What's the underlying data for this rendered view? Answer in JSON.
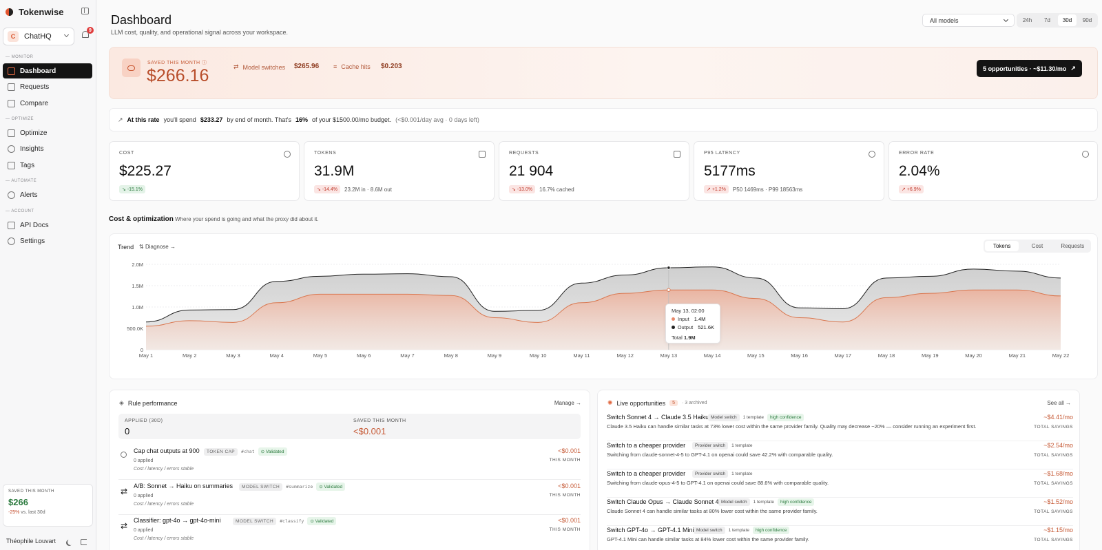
{
  "app": {
    "name": "Tokenwise"
  },
  "workspace": {
    "initial": "C",
    "name": "ChatHQ"
  },
  "notifications": {
    "count": "9"
  },
  "sidebar": {
    "sections": [
      {
        "label": "Monitor"
      },
      {
        "label": "Optimize"
      },
      {
        "label": "Automate"
      },
      {
        "label": "Account"
      }
    ],
    "items": [
      {
        "label": "Dashboard",
        "icon": "grid-icon"
      },
      {
        "label": "Requests",
        "icon": "list-icon"
      },
      {
        "label": "Compare",
        "icon": "compare-icon"
      },
      {
        "label": "Optimize",
        "icon": "sliders-icon"
      },
      {
        "label": "Insights",
        "icon": "lightbulb-icon"
      },
      {
        "label": "Tags",
        "icon": "tag-icon"
      },
      {
        "label": "Alerts",
        "icon": "bell-icon"
      },
      {
        "label": "API Docs",
        "icon": "code-icon"
      },
      {
        "label": "Settings",
        "icon": "gear-icon"
      }
    ],
    "saved": {
      "label": "SAVED THIS MONTH",
      "amount": "$266",
      "delta": "-25%",
      "delta_suffix": "vs. last 30d"
    },
    "user": "Théophile Louvart"
  },
  "header": {
    "title": "Dashboard",
    "subtitle": "LLM cost, quality, and operational signal across your workspace.",
    "model_select": "All models",
    "ranges": [
      "24h",
      "7d",
      "30d",
      "90d"
    ],
    "active_range": "30d"
  },
  "banner": {
    "label": "SAVED THIS MONTH",
    "amount": "$266.16",
    "stats": [
      {
        "label": "Model switches",
        "value": "$265.96"
      },
      {
        "label": "Cache hits",
        "value": "$0.203"
      }
    ],
    "cta": "5 opportunities · ~$11.30/mo"
  },
  "forecast": {
    "lead": "At this rate",
    "p1": "you'll spend",
    "amount": "$233.27",
    "p2": "by end of month. That's",
    "pct": "16%",
    "p3": "of your $1500.00/mo budget.",
    "muted": "(<$0.001/day avg · 0 days left)"
  },
  "kpis": [
    {
      "label": "COST",
      "value": "$225.27",
      "delta": "-15.1%",
      "delta_kind": "good",
      "note": ""
    },
    {
      "label": "TOKENS",
      "value": "31.9M",
      "delta": "-14.4%",
      "delta_kind": "bad",
      "note": "23.2M in · 8.6M out"
    },
    {
      "label": "REQUESTS",
      "value": "21 904",
      "delta": "-13.0%",
      "delta_kind": "bad",
      "note": "16.7% cached"
    },
    {
      "label": "P95 LATENCY",
      "value": "5177ms",
      "delta": "+1.2%",
      "delta_kind": "bad",
      "note": "P50 1469ms · P99 18563ms"
    },
    {
      "label": "ERROR RATE",
      "value": "2.04%",
      "delta": "+6.9%",
      "delta_kind": "bad",
      "note": ""
    }
  ],
  "cost_section": {
    "title": "Cost & optimization",
    "subtitle": "Where your spend is going and what the proxy did about it."
  },
  "trend": {
    "title": "Trend",
    "diagnose": "Diagnose →",
    "metrics": [
      "Tokens",
      "Cost",
      "Requests"
    ],
    "active_metric": "Tokens",
    "tooltip": {
      "date": "May 13, 02:00",
      "input_label": "Input",
      "input_value": "1.4M",
      "output_label": "Output",
      "output_value": "521.6K",
      "total_label": "Total",
      "total_value": "1.9M"
    }
  },
  "chart_data": {
    "type": "area",
    "title": "Trend",
    "x": [
      "May 1",
      "May 2",
      "May 3",
      "May 4",
      "May 5",
      "May 6",
      "May 7",
      "May 8",
      "May 9",
      "May 10",
      "May 11",
      "May 12",
      "May 13",
      "May 14",
      "May 15",
      "May 16",
      "May 17",
      "May 18",
      "May 19",
      "May 20",
      "May 21",
      "May 22"
    ],
    "yticks": [
      "0",
      "500.0K",
      "1.0M",
      "1.5M",
      "2.0M"
    ],
    "ylim": [
      0,
      2000000
    ],
    "stacked": true,
    "series": [
      {
        "name": "Input",
        "color": "#e8896a",
        "values": [
          550000,
          680000,
          640000,
          1100000,
          1300000,
          1300000,
          1300000,
          1270000,
          750000,
          640000,
          1100000,
          1320000,
          1400000,
          1400000,
          1200000,
          750000,
          650000,
          1220000,
          1320000,
          1400000,
          1400000,
          1260000
        ]
      },
      {
        "name": "Output",
        "color": "#333333",
        "values": [
          100000,
          250000,
          300000,
          500000,
          420000,
          470000,
          480000,
          440000,
          150000,
          280000,
          460000,
          430000,
          520000,
          540000,
          480000,
          230000,
          310000,
          460000,
          400000,
          490000,
          440000,
          420000
        ]
      }
    ],
    "grid": true,
    "legend": "none"
  },
  "rules": {
    "title": "Rule performance",
    "action": "Manage →",
    "applied_label": "APPLIED (30D)",
    "applied_value": "0",
    "saved_label": "SAVED THIS MONTH",
    "saved_value": "<$0.001",
    "items": [
      {
        "name": "Cap chat outputs at 900",
        "type": "TOKEN CAP",
        "tag": "#chat",
        "status": "Validated",
        "applied": "0 applied",
        "note": "Cost / latency / errors stable",
        "saving": "<$0.001",
        "saving_sub": "THIS MONTH"
      },
      {
        "name": "A/B: Sonnet → Haiku on summaries",
        "type": "MODEL SWITCH",
        "tag": "#summarize",
        "status": "Validated",
        "applied": "0 applied",
        "note": "Cost / latency / errors stable",
        "saving": "<$0.001",
        "saving_sub": "THIS MONTH"
      },
      {
        "name": "Classifier: gpt-4o → gpt-4o-mini",
        "type": "MODEL SWITCH",
        "tag": "#classify",
        "status": "Validated",
        "applied": "0 applied",
        "note": "Cost / latency / errors stable",
        "saving": "<$0.001",
        "saving_sub": "THIS MONTH"
      }
    ]
  },
  "opportunities": {
    "title": "Live opportunities",
    "count": "5",
    "archived": "· 3 archived",
    "action": "See all →",
    "items": [
      {
        "title": "Switch Sonnet 4 → Claude 3.5 Haiku",
        "kind": "Model switch",
        "templates": "1 template",
        "confidence": "high confidence",
        "desc": "Claude 3.5 Haiku can handle similar tasks at 73% lower cost within the same provider family. Quality may decrease ~20% — consider running an experiment first.",
        "amount": "~$4.41/mo",
        "amount_sub": "TOTAL SAVINGS"
      },
      {
        "title": "Switch to a cheaper provider",
        "kind": "Provider switch",
        "templates": "1 template",
        "confidence": "",
        "desc": "Switching from claude-sonnet-4-5 to GPT-4.1 on openai could save 42.2% with comparable quality.",
        "amount": "~$2.54/mo",
        "amount_sub": "TOTAL SAVINGS"
      },
      {
        "title": "Switch to a cheaper provider",
        "kind": "Provider switch",
        "templates": "1 template",
        "confidence": "",
        "desc": "Switching from claude-opus-4-5 to GPT-4.1 on openai could save 88.6% with comparable quality.",
        "amount": "~$1.68/mo",
        "amount_sub": "TOTAL SAVINGS"
      },
      {
        "title": "Switch Claude Opus → Claude Sonnet 4",
        "kind": "Model switch",
        "templates": "1 template",
        "confidence": "high confidence",
        "desc": "Claude Sonnet 4 can handle similar tasks at 80% lower cost within the same provider family.",
        "amount": "~$1.52/mo",
        "amount_sub": "TOTAL SAVINGS"
      },
      {
        "title": "Switch GPT-4o → GPT-4.1 Mini",
        "kind": "Model switch",
        "templates": "1 template",
        "confidence": "high confidence",
        "desc": "GPT-4.1 Mini can handle similar tasks at 84% lower cost within the same provider family.",
        "amount": "~$1.15/mo",
        "amount_sub": "TOTAL SAVINGS"
      }
    ]
  }
}
